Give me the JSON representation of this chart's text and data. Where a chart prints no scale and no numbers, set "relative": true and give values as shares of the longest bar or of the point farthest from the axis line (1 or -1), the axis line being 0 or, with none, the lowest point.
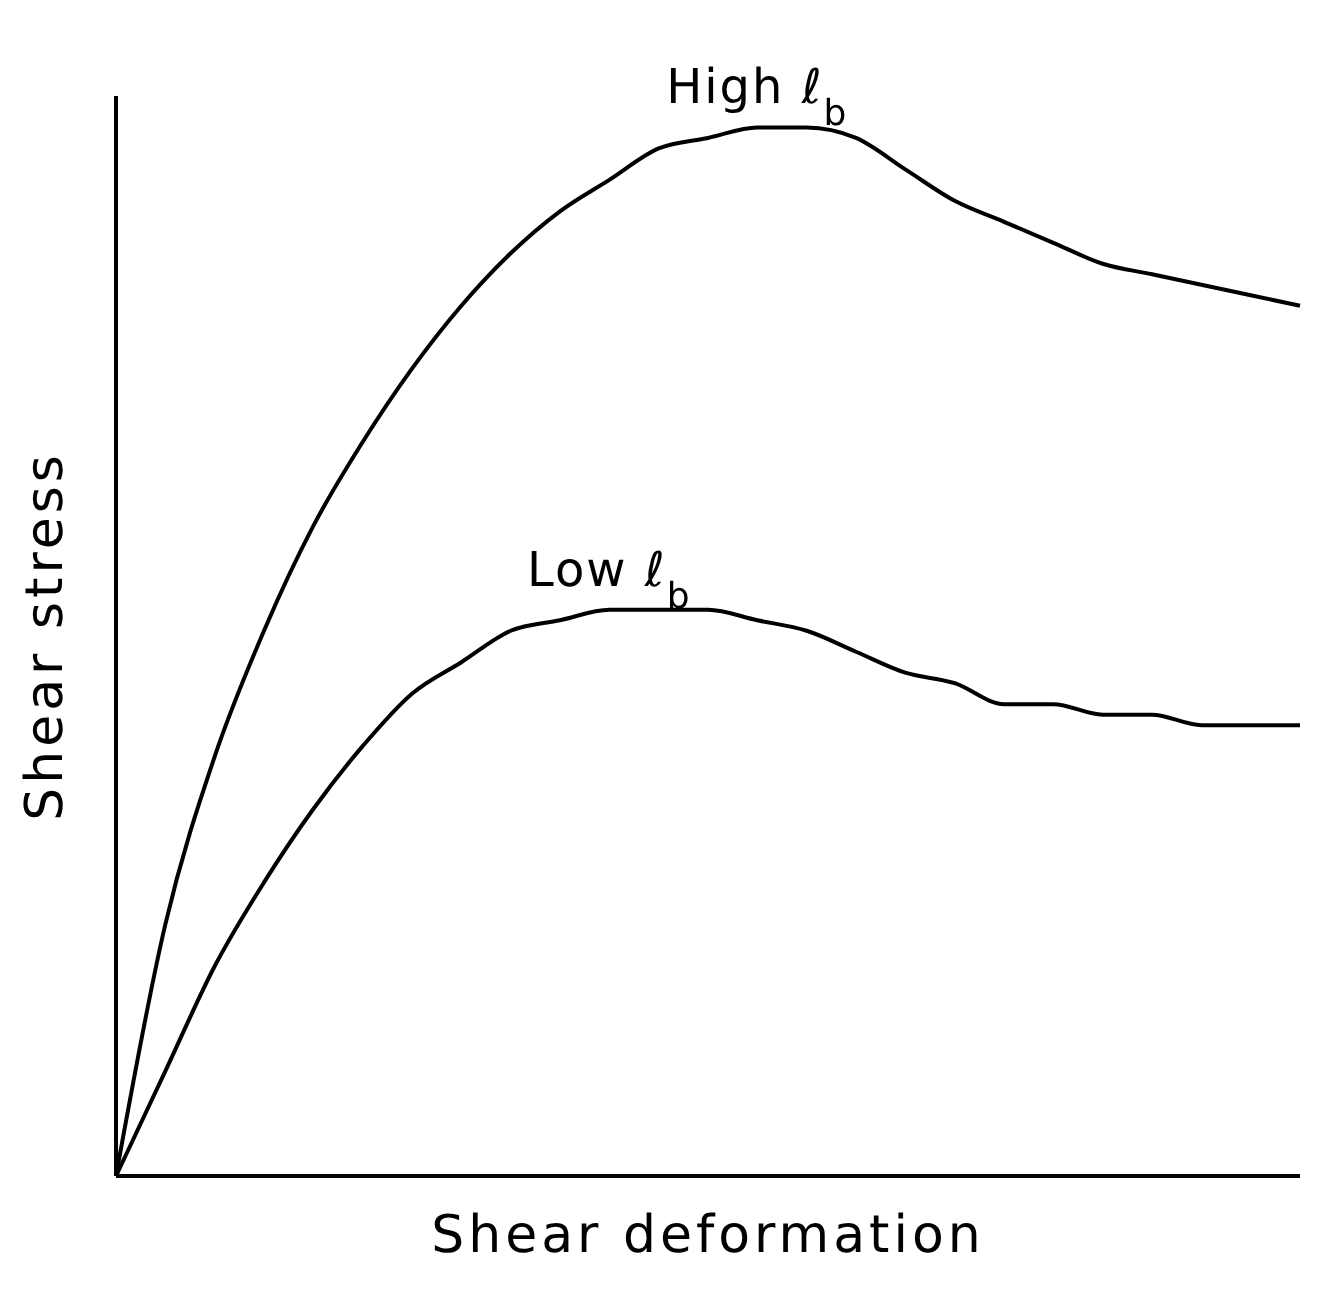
{
  "chart_data": {
    "type": "line",
    "relative": true,
    "xlabel": "Shear deformation",
    "ylabel": "Shear stress",
    "grid": false,
    "legend": false,
    "marker": "none",
    "line_style": "solid",
    "categories": [
      null,
      null,
      null,
      null,
      null,
      null,
      null,
      null,
      null,
      null,
      null,
      null,
      null,
      null,
      null,
      null,
      null,
      null,
      null,
      null,
      null,
      null,
      null,
      null,
      null
    ],
    "series": [
      {
        "name": "High ℓ$_{b}$",
        "color": "#000000",
        "values": [
          0,
          0.24,
          0.4,
          0.52,
          0.62,
          0.7,
          0.77,
          0.83,
          0.88,
          0.92,
          0.95,
          0.98,
          0.99,
          1,
          1,
          0.99,
          0.96,
          0.93,
          0.91,
          0.89,
          0.87,
          0.86,
          0.85,
          0.84,
          0.83
        ]
      },
      {
        "name": "Low ℓ$_{b}$",
        "color": "#000000",
        "values": [
          0,
          0.1,
          0.2,
          0.28,
          0.35,
          0.41,
          0.46,
          0.49,
          0.52,
          0.53,
          0.54,
          0.54,
          0.54,
          0.53,
          0.52,
          0.5,
          0.48,
          0.47,
          0.45,
          0.45,
          0.44,
          0.44,
          0.43,
          0.43,
          0.43
        ]
      }
    ]
  }
}
